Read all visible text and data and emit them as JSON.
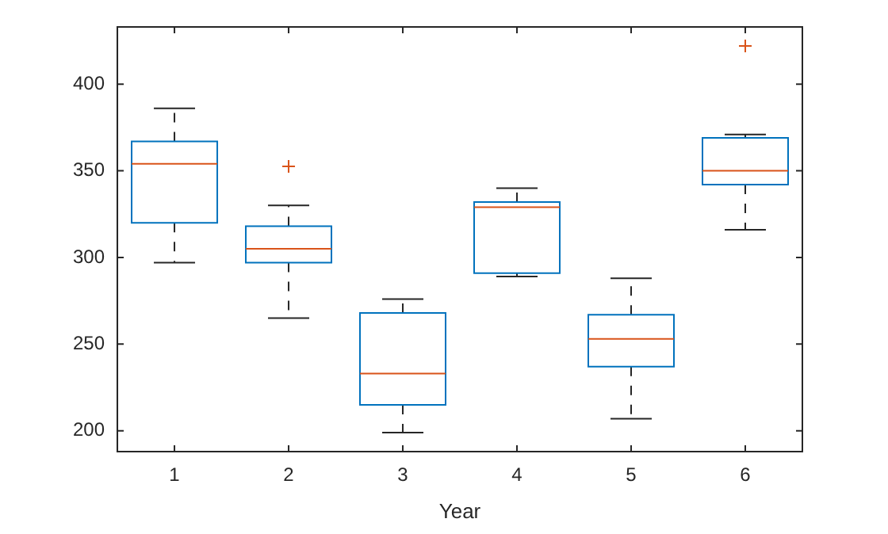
{
  "chart_data": {
    "type": "box",
    "xlabel": "Year",
    "categories": [
      "1",
      "2",
      "3",
      "4",
      "5",
      "6"
    ],
    "color": "#0072bd",
    "ylim": [
      188,
      433
    ],
    "yticks": [
      200,
      250,
      300,
      350,
      400
    ],
    "grid": false,
    "legend": false,
    "marker": "cross",
    "boxes": [
      {
        "low": 297,
        "q1": 320,
        "median": 354,
        "q3": 367,
        "high": 386
      },
      {
        "low": 265,
        "q1": 297,
        "median": 305,
        "q3": 318,
        "high": 330,
        "outliers": [
          352.5
        ]
      },
      {
        "low": 199,
        "q1": 215,
        "median": 233,
        "q3": 268,
        "high": 276
      },
      {
        "low": 289,
        "q1": 291,
        "median": 329,
        "q3": 332,
        "high": 340
      },
      {
        "low": 207,
        "q1": 237,
        "median": 253,
        "q3": 267,
        "high": 288
      },
      {
        "low": 316,
        "q1": 342,
        "median": 350,
        "q3": 369,
        "high": 371,
        "outliers": [
          422
        ]
      }
    ]
  }
}
